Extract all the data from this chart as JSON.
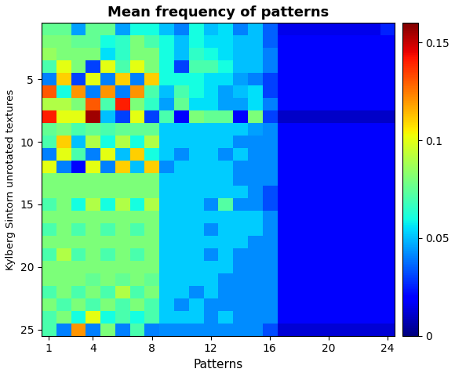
{
  "title": "Mean frequency of patterns",
  "xlabel": "Patterns",
  "ylabel": "Kylberg Sintorn unrotated textures",
  "nrows": 25,
  "ncols": 24,
  "vmin": 0,
  "vmax": 0.16,
  "colorbar_ticks": [
    0,
    0.05,
    0.1,
    0.15
  ],
  "colorbar_labels": [
    "0",
    "0.05",
    "0.1",
    "0.15"
  ],
  "xticks": [
    1,
    4,
    8,
    12,
    16,
    20,
    24
  ],
  "yticks": [
    5,
    10,
    15,
    20,
    25
  ],
  "figsize": [
    5.8,
    4.8
  ],
  "matrix": [
    [
      0.075,
      0.075,
      0.045,
      0.075,
      0.075,
      0.045,
      0.06,
      0.06,
      0.05,
      0.04,
      0.06,
      0.05,
      0.055,
      0.04,
      0.05,
      0.035,
      0.015,
      0.015,
      0.015,
      0.015,
      0.015,
      0.015,
      0.015,
      0.025
    ],
    [
      0.08,
      0.08,
      0.075,
      0.075,
      0.06,
      0.065,
      0.08,
      0.07,
      0.06,
      0.05,
      0.06,
      0.055,
      0.055,
      0.05,
      0.05,
      0.035,
      0.02,
      0.02,
      0.02,
      0.02,
      0.02,
      0.02,
      0.02,
      0.02
    ],
    [
      0.085,
      0.08,
      0.08,
      0.08,
      0.055,
      0.065,
      0.08,
      0.08,
      0.06,
      0.05,
      0.065,
      0.06,
      0.055,
      0.05,
      0.05,
      0.04,
      0.02,
      0.02,
      0.02,
      0.02,
      0.02,
      0.02,
      0.02,
      0.02
    ],
    [
      0.07,
      0.1,
      0.08,
      0.03,
      0.1,
      0.07,
      0.1,
      0.08,
      0.06,
      0.03,
      0.07,
      0.07,
      0.06,
      0.05,
      0.05,
      0.04,
      0.02,
      0.02,
      0.02,
      0.02,
      0.02,
      0.02,
      0.02,
      0.02
    ],
    [
      0.04,
      0.11,
      0.03,
      0.1,
      0.04,
      0.11,
      0.04,
      0.11,
      0.06,
      0.06,
      0.06,
      0.055,
      0.055,
      0.045,
      0.04,
      0.03,
      0.02,
      0.02,
      0.02,
      0.02,
      0.02,
      0.02,
      0.02,
      0.02
    ],
    [
      0.13,
      0.06,
      0.12,
      0.04,
      0.12,
      0.04,
      0.12,
      0.07,
      0.05,
      0.07,
      0.06,
      0.055,
      0.045,
      0.05,
      0.055,
      0.03,
      0.02,
      0.02,
      0.02,
      0.02,
      0.02,
      0.02,
      0.02,
      0.02
    ],
    [
      0.09,
      0.09,
      0.08,
      0.13,
      0.07,
      0.14,
      0.08,
      0.065,
      0.045,
      0.075,
      0.055,
      0.055,
      0.045,
      0.045,
      0.055,
      0.04,
      0.02,
      0.02,
      0.02,
      0.02,
      0.02,
      0.02,
      0.02,
      0.02
    ],
    [
      0.14,
      0.1,
      0.1,
      0.155,
      0.05,
      0.03,
      0.1,
      0.03,
      0.07,
      0.02,
      0.08,
      0.075,
      0.075,
      0.02,
      0.08,
      0.03,
      0.01,
      0.01,
      0.01,
      0.01,
      0.01,
      0.01,
      0.01,
      0.01
    ],
    [
      0.075,
      0.08,
      0.07,
      0.075,
      0.07,
      0.075,
      0.075,
      0.075,
      0.052,
      0.052,
      0.052,
      0.052,
      0.052,
      0.052,
      0.045,
      0.042,
      0.02,
      0.02,
      0.02,
      0.02,
      0.02,
      0.02,
      0.02,
      0.02
    ],
    [
      0.07,
      0.11,
      0.05,
      0.09,
      0.06,
      0.09,
      0.06,
      0.09,
      0.052,
      0.052,
      0.052,
      0.052,
      0.052,
      0.042,
      0.042,
      0.042,
      0.02,
      0.02,
      0.02,
      0.02,
      0.02,
      0.02,
      0.02,
      0.02
    ],
    [
      0.04,
      0.1,
      0.07,
      0.04,
      0.1,
      0.05,
      0.11,
      0.06,
      0.052,
      0.042,
      0.052,
      0.052,
      0.042,
      0.052,
      0.042,
      0.042,
      0.02,
      0.02,
      0.02,
      0.02,
      0.02,
      0.02,
      0.02,
      0.02
    ],
    [
      0.1,
      0.04,
      0.02,
      0.1,
      0.04,
      0.11,
      0.05,
      0.11,
      0.042,
      0.052,
      0.052,
      0.052,
      0.052,
      0.042,
      0.042,
      0.042,
      0.02,
      0.02,
      0.02,
      0.02,
      0.02,
      0.02,
      0.02,
      0.02
    ],
    [
      0.08,
      0.08,
      0.08,
      0.08,
      0.08,
      0.08,
      0.08,
      0.08,
      0.052,
      0.052,
      0.052,
      0.052,
      0.052,
      0.042,
      0.042,
      0.042,
      0.02,
      0.02,
      0.02,
      0.02,
      0.02,
      0.02,
      0.02,
      0.02
    ],
    [
      0.08,
      0.08,
      0.08,
      0.08,
      0.08,
      0.08,
      0.08,
      0.08,
      0.052,
      0.052,
      0.052,
      0.052,
      0.052,
      0.052,
      0.042,
      0.032,
      0.02,
      0.02,
      0.02,
      0.02,
      0.02,
      0.02,
      0.02,
      0.02
    ],
    [
      0.07,
      0.08,
      0.06,
      0.09,
      0.06,
      0.09,
      0.06,
      0.09,
      0.052,
      0.052,
      0.052,
      0.042,
      0.072,
      0.042,
      0.042,
      0.032,
      0.02,
      0.02,
      0.02,
      0.02,
      0.02,
      0.02,
      0.02,
      0.02
    ],
    [
      0.08,
      0.08,
      0.08,
      0.08,
      0.08,
      0.08,
      0.08,
      0.08,
      0.052,
      0.052,
      0.052,
      0.052,
      0.052,
      0.052,
      0.052,
      0.042,
      0.02,
      0.02,
      0.02,
      0.02,
      0.02,
      0.02,
      0.02,
      0.02
    ],
    [
      0.07,
      0.08,
      0.07,
      0.08,
      0.07,
      0.08,
      0.07,
      0.08,
      0.052,
      0.052,
      0.052,
      0.042,
      0.052,
      0.052,
      0.052,
      0.042,
      0.02,
      0.02,
      0.02,
      0.02,
      0.02,
      0.02,
      0.02,
      0.02
    ],
    [
      0.08,
      0.08,
      0.08,
      0.08,
      0.08,
      0.08,
      0.08,
      0.08,
      0.052,
      0.052,
      0.052,
      0.052,
      0.052,
      0.052,
      0.042,
      0.042,
      0.02,
      0.02,
      0.02,
      0.02,
      0.02,
      0.02,
      0.02,
      0.02
    ],
    [
      0.07,
      0.09,
      0.07,
      0.08,
      0.07,
      0.08,
      0.07,
      0.08,
      0.052,
      0.052,
      0.052,
      0.042,
      0.052,
      0.042,
      0.042,
      0.042,
      0.02,
      0.02,
      0.02,
      0.02,
      0.02,
      0.02,
      0.02,
      0.02
    ],
    [
      0.08,
      0.08,
      0.08,
      0.08,
      0.08,
      0.08,
      0.08,
      0.08,
      0.052,
      0.052,
      0.052,
      0.052,
      0.052,
      0.042,
      0.042,
      0.042,
      0.02,
      0.02,
      0.02,
      0.02,
      0.02,
      0.02,
      0.02,
      0.02
    ],
    [
      0.08,
      0.08,
      0.08,
      0.075,
      0.08,
      0.075,
      0.08,
      0.075,
      0.052,
      0.052,
      0.052,
      0.052,
      0.042,
      0.042,
      0.042,
      0.042,
      0.02,
      0.02,
      0.02,
      0.02,
      0.02,
      0.02,
      0.02,
      0.02
    ],
    [
      0.07,
      0.08,
      0.07,
      0.08,
      0.07,
      0.09,
      0.07,
      0.08,
      0.052,
      0.052,
      0.042,
      0.052,
      0.042,
      0.042,
      0.042,
      0.042,
      0.02,
      0.02,
      0.02,
      0.02,
      0.02,
      0.02,
      0.02,
      0.02
    ],
    [
      0.08,
      0.07,
      0.08,
      0.07,
      0.08,
      0.07,
      0.08,
      0.07,
      0.052,
      0.042,
      0.052,
      0.042,
      0.042,
      0.042,
      0.042,
      0.042,
      0.02,
      0.02,
      0.02,
      0.02,
      0.02,
      0.02,
      0.02,
      0.02
    ],
    [
      0.07,
      0.08,
      0.06,
      0.1,
      0.06,
      0.07,
      0.06,
      0.07,
      0.052,
      0.052,
      0.052,
      0.042,
      0.052,
      0.042,
      0.042,
      0.042,
      0.02,
      0.02,
      0.02,
      0.02,
      0.02,
      0.02,
      0.02,
      0.02
    ],
    [
      0.07,
      0.04,
      0.12,
      0.04,
      0.08,
      0.04,
      0.07,
      0.04,
      0.042,
      0.042,
      0.042,
      0.042,
      0.042,
      0.042,
      0.042,
      0.032,
      0.012,
      0.012,
      0.012,
      0.012,
      0.012,
      0.012,
      0.012,
      0.012
    ]
  ]
}
